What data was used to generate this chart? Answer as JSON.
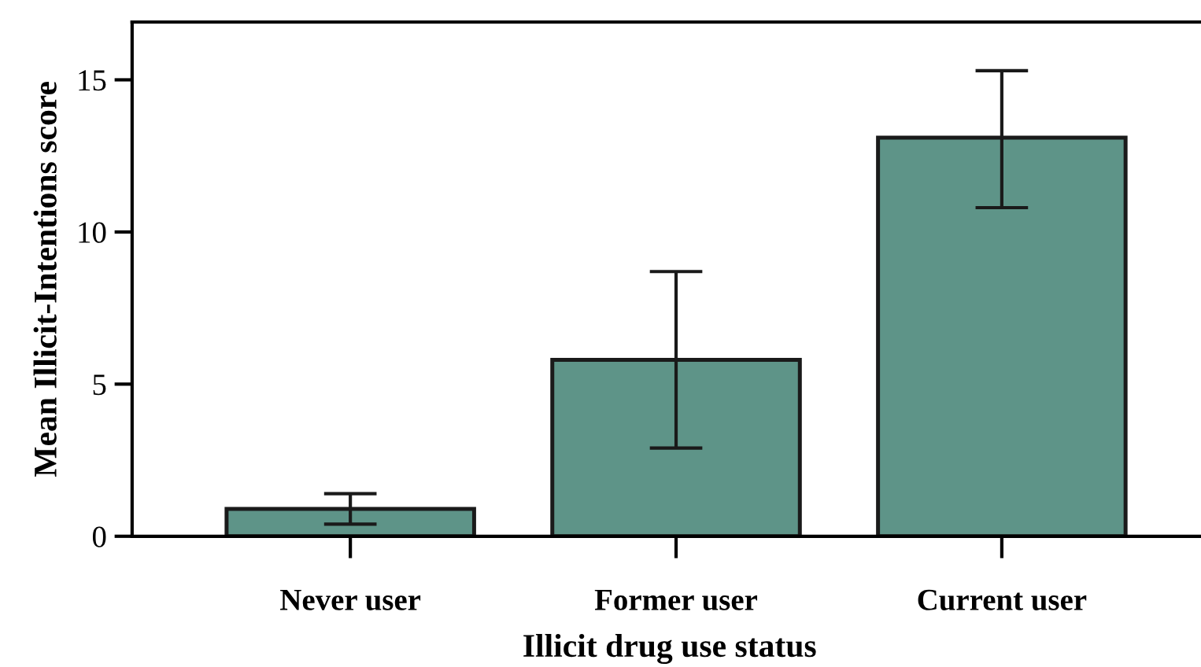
{
  "chart_data": {
    "type": "bar",
    "xlabel": "Illicit drug use status",
    "ylabel": "Mean Illicit-Intentions score",
    "categories": [
      "Never user",
      "Former user",
      "Current user"
    ],
    "values": [
      0.9,
      5.8,
      13.1
    ],
    "errors": [
      [
        0.4,
        1.4
      ],
      [
        2.9,
        8.7
      ],
      [
        10.8,
        15.3
      ]
    ],
    "color": "#5e9488",
    "ylim": [
      0,
      16.9
    ],
    "yticks": [
      0,
      5,
      10,
      15
    ],
    "grid": false
  }
}
